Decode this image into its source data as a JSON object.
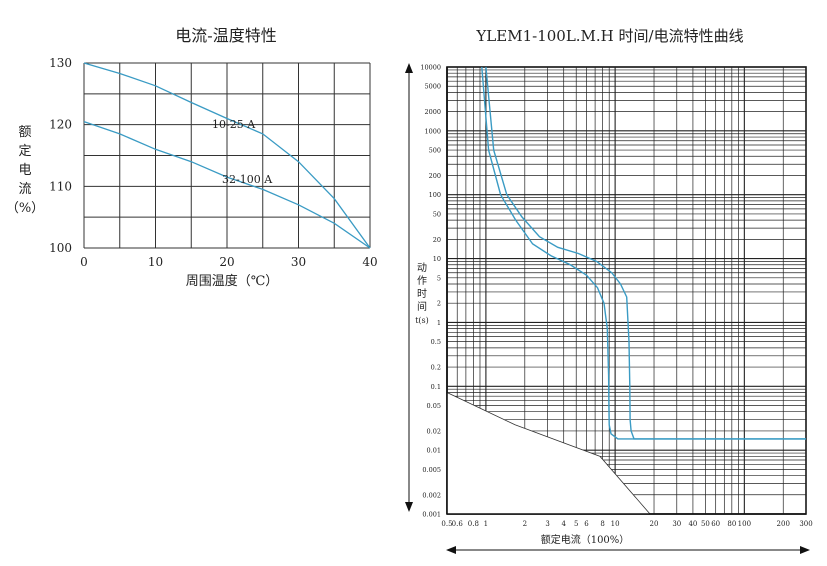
{
  "chart_data": [
    {
      "type": "line",
      "title": "电流-温度特性",
      "xlabel": "周围温度（℃）",
      "ylabel_chars": [
        "额",
        "定",
        "电",
        "流",
        "（%）"
      ],
      "xlim": [
        0,
        40
      ],
      "ylim": [
        100,
        130
      ],
      "x_ticks": [
        "0",
        "10",
        "20",
        "30",
        "40"
      ],
      "y_ticks": [
        "100",
        "110",
        "120",
        "130"
      ],
      "grid": true,
      "series": [
        {
          "name": "10-25 A",
          "x": [
            0,
            5,
            10,
            15,
            20,
            25,
            30,
            35,
            40
          ],
          "y": [
            130,
            128.3,
            126.3,
            123.6,
            121,
            118.5,
            114,
            108,
            100
          ]
        },
        {
          "name": "32-100 A",
          "x": [
            0,
            5,
            10,
            15,
            20,
            25,
            30,
            35,
            40
          ],
          "y": [
            120.5,
            118.5,
            116,
            114,
            111.5,
            109.5,
            107,
            104,
            100
          ]
        }
      ]
    },
    {
      "type": "line",
      "title": "YLEM1-100L.M.H  时间/电流特性曲线",
      "xlabel": "额定电流（100%）",
      "ylabel_chars": [
        "动",
        "作",
        "时",
        "间",
        "t(s)"
      ],
      "x_scale": "log",
      "y_scale": "log",
      "xlim": [
        0.5,
        300
      ],
      "ylim": [
        0.001,
        10000
      ],
      "x_ticks": [
        "0.5",
        "0.6",
        "0.8",
        "1",
        "2",
        "3",
        "4",
        "5",
        "6",
        "8",
        "10",
        "20",
        "30",
        "40",
        "50",
        "60",
        "80",
        "100",
        "200",
        "300"
      ],
      "y_ticks": [
        "0.001",
        "0.002",
        "0.005",
        "0.01",
        "0.02",
        "0.05",
        "0.1",
        "0.2",
        "0.5",
        "1",
        "2",
        "5",
        "10",
        "20",
        "50",
        "100",
        "200",
        "500",
        "1000",
        "2000",
        "5000",
        "10000"
      ],
      "grid": true,
      "series": [
        {
          "x": [
            0.93,
            1.05,
            1.3,
            1.7,
            2.3,
            3.2,
            4.5,
            6.0,
            7.3,
            8.2,
            8.7,
            8.9,
            8.95,
            9.0,
            9.3,
            10.5,
            300
          ],
          "y": [
            10000,
            500,
            100,
            40,
            17,
            11,
            8,
            5.5,
            3.5,
            2.0,
            0.8,
            0.15,
            0.05,
            0.025,
            0.018,
            0.015,
            0.015
          ]
        },
        {
          "x": [
            1.0,
            1.15,
            1.45,
            1.9,
            2.6,
            3.6,
            5.2,
            7.2,
            9.4,
            11.0,
            12.3,
            12.8,
            13.0,
            13.05,
            13.3,
            14.0,
            300
          ],
          "y": [
            10000,
            500,
            100,
            45,
            22,
            15,
            12,
            9,
            6,
            4,
            2.5,
            0.5,
            0.1,
            0.03,
            0.02,
            0.015,
            0.015
          ]
        }
      ]
    }
  ]
}
